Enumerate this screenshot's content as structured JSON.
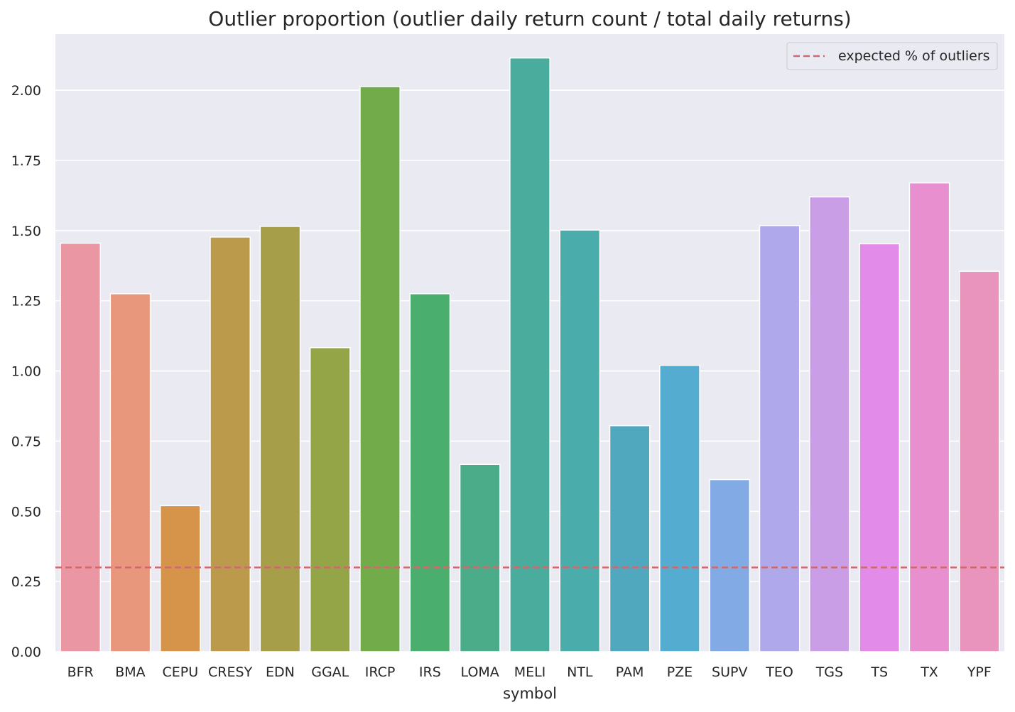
{
  "chart_data": {
    "type": "bar",
    "title": "Outlier proportion (outlier daily return count / total daily returns)",
    "xlabel": "symbol",
    "ylabel": "",
    "categories": [
      "BFR",
      "BMA",
      "CEPU",
      "CRESY",
      "EDN",
      "GGAL",
      "IRCP",
      "IRS",
      "LOMA",
      "MELI",
      "NTL",
      "PAM",
      "PZE",
      "SUPV",
      "TEO",
      "TGS",
      "TS",
      "TX",
      "YPF"
    ],
    "values": [
      1.455,
      1.275,
      0.52,
      1.477,
      1.515,
      1.083,
      2.013,
      1.275,
      0.667,
      2.115,
      1.502,
      0.805,
      1.02,
      0.613,
      1.518,
      1.62,
      1.453,
      1.67,
      1.355
    ],
    "colors": [
      "#ea96a3",
      "#e8977d",
      "#d6944b",
      "#bb9a4c",
      "#a69e49",
      "#94a548",
      "#72ab4a",
      "#4aaf6e",
      "#4bac8a",
      "#4aac9c",
      "#4bacac",
      "#4fa8bd",
      "#54acd1",
      "#82abe5",
      "#afa9ec",
      "#ca9de7",
      "#e38be9",
      "#e890cf",
      "#e994bc"
    ],
    "yticks": [
      "0.00",
      "0.25",
      "0.50",
      "0.75",
      "1.00",
      "1.25",
      "1.50",
      "1.75",
      "2.00"
    ],
    "ylim": [
      0,
      2.2
    ],
    "reference_line": {
      "value": 0.3,
      "label": "expected % of outliers",
      "color": "#d0696f",
      "style": "dashed"
    },
    "legend_position": "top-right",
    "grid": true,
    "background": "#eaeaf2"
  }
}
